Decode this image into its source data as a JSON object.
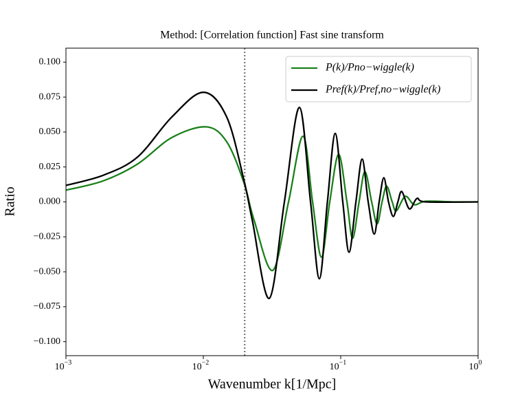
{
  "chart_data": {
    "type": "line",
    "title": "Method: [Correlation function] Fast sine transform",
    "x_label": "Wavenumber k[1/Mpc]",
    "y_label": "Ratio",
    "xscale": "log",
    "xlim": [
      0.001,
      1
    ],
    "xticks": [
      {
        "value": 0.001,
        "label": "10−3"
      },
      {
        "value": 0.01,
        "label": "10−2"
      },
      {
        "value": 0.1,
        "label": "10−1"
      },
      {
        "value": 1,
        "label": "100"
      }
    ],
    "ylim": [
      -0.11,
      0.11
    ],
    "yticks": [
      {
        "value": -0.1,
        "label": "−0.100"
      },
      {
        "value": -0.075,
        "label": "−0.075"
      },
      {
        "value": -0.05,
        "label": "−0.050"
      },
      {
        "value": -0.025,
        "label": "−0.025"
      },
      {
        "value": 0,
        "label": "0.000"
      },
      {
        "value": 0.025,
        "label": "0.025"
      },
      {
        "value": 0.05,
        "label": "0.050"
      },
      {
        "value": 0.075,
        "label": "0.075"
      },
      {
        "value": 0.1,
        "label": "0.100"
      }
    ],
    "vline": 0.02,
    "legend": "upper right",
    "series": [
      {
        "name": "P(k)/Pno−wiggle(k)",
        "color": "#1a801a",
        "x": [
          0.001,
          0.00186,
          0.00331,
          0.00589,
          0.0105,
          0.0148,
          0.0197,
          0.0234,
          0.032,
          0.0417,
          0.0531,
          0.0624,
          0.0724,
          0.0832,
          0.0966,
          0.111,
          0.122,
          0.136,
          0.15,
          0.168,
          0.184,
          0.2,
          0.216,
          0.237,
          0.254,
          0.295,
          0.343,
          0.417,
          0.661,
          1
        ],
        "values": [
          0.0084,
          0.015,
          0.027,
          0.046,
          0.0537,
          0.043,
          0.014,
          -0.013,
          -0.049,
          0,
          0.047,
          0,
          -0.0395,
          0,
          0.034,
          0,
          -0.026,
          0,
          0.0217,
          0,
          -0.0158,
          0,
          0.0113,
          0,
          -0.0064,
          0.004,
          -0.002,
          0.0005,
          0,
          0
        ]
      },
      {
        "name": "Pref(k)/Pref,no−wiggle(k)",
        "color": "#000000",
        "x": [
          0.001,
          0.00186,
          0.00331,
          0.00589,
          0.01,
          0.0148,
          0.0197,
          0.0227,
          0.0302,
          0.0389,
          0.05,
          0.0603,
          0.0699,
          0.08,
          0.0912,
          0.1035,
          0.115,
          0.129,
          0.1432,
          0.1585,
          0.1754,
          0.1905,
          0.206,
          0.2228,
          0.2415,
          0.2606,
          0.2786,
          0.3162,
          0.3589,
          0.417,
          1
        ],
        "values": [
          0.0118,
          0.019,
          0.032,
          0.0607,
          0.0784,
          0.0607,
          0.016,
          -0.013,
          -0.069,
          0,
          0.0676,
          0,
          -0.055,
          0,
          0.049,
          0,
          -0.036,
          0,
          0.0306,
          0,
          -0.023,
          0,
          0.0173,
          0,
          -0.0104,
          0,
          0.0074,
          -0.005,
          0.0025,
          0,
          0
        ]
      }
    ]
  }
}
